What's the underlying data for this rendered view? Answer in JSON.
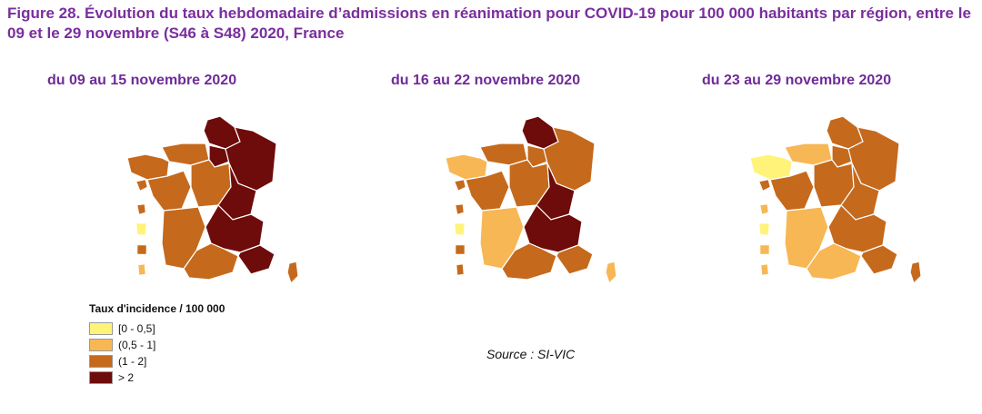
{
  "figure_title": "Figure 28. Évolution du taux hebdomadaire d’admissions en réanimation pour COVID-19 pour 100 000 habitants par région, entre le 09 et le 29 novembre (S46 à S48) 2020, France",
  "colors": {
    "c0": "#fff37a",
    "c1": "#f7b754",
    "c2": "#c5691c",
    "c3": "#6e0b0b"
  },
  "legend": {
    "title": "Taux d'incidence / 100 000",
    "items": [
      {
        "label": "[0 - 0,5]",
        "class": "c0"
      },
      {
        "label": "(0,5 - 1]",
        "class": "c1"
      },
      {
        "label": "(1 - 2]",
        "class": "c2"
      },
      {
        "label": "> 2",
        "class": "c3"
      }
    ]
  },
  "source": "Source : SI-VIC",
  "maps": [
    {
      "period": "du 09 au 15 novembre 2020",
      "regions": {
        "hdf": "c3",
        "normandie": "c2",
        "idf": "c3",
        "grand_est": "c3",
        "bretagne": "c2",
        "pdl": "c2",
        "cvl": "c2",
        "bfc": "c3",
        "na": "c2",
        "ara": "c3",
        "occitanie": "c2",
        "paca": "c3",
        "corse": "c2",
        "guadeloupe": "c2",
        "martinique": "c2",
        "guyane": "c0",
        "reunion": "c2",
        "mayotte": "c1"
      }
    },
    {
      "period": "du 16 au 22 novembre 2020",
      "regions": {
        "hdf": "c3",
        "normandie": "c2",
        "idf": "c2",
        "grand_est": "c2",
        "bretagne": "c1",
        "pdl": "c2",
        "cvl": "c2",
        "bfc": "c3",
        "na": "c1",
        "ara": "c3",
        "occitanie": "c2",
        "paca": "c2",
        "corse": "c1",
        "guadeloupe": "c2",
        "martinique": "c2",
        "guyane": "c0",
        "reunion": "c2",
        "mayotte": "c2"
      }
    },
    {
      "period": "du 23 au 29 novembre 2020",
      "regions": {
        "hdf": "c2",
        "normandie": "c1",
        "idf": "c2",
        "grand_est": "c2",
        "bretagne": "c0",
        "pdl": "c2",
        "cvl": "c2",
        "bfc": "c2",
        "na": "c1",
        "ara": "c2",
        "occitanie": "c1",
        "paca": "c2",
        "corse": "c2",
        "guadeloupe": "c2",
        "martinique": "c1",
        "guyane": "c0",
        "reunion": "c1",
        "mayotte": "c1"
      }
    }
  ]
}
